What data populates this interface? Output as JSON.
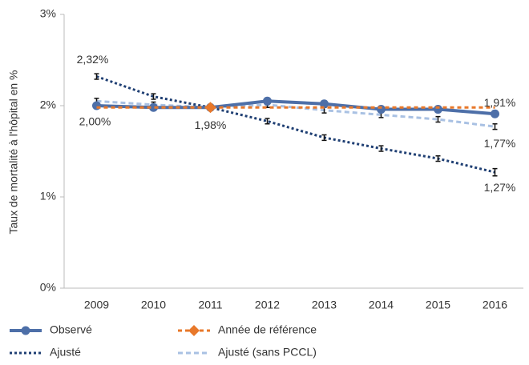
{
  "chart_data": {
    "type": "line",
    "y_label": "Taux de mortalité à l'hôpital en %",
    "categories": [
      "2009",
      "2010",
      "2011",
      "2012",
      "2013",
      "2014",
      "2015",
      "2016"
    ],
    "ylim": [
      0,
      3
    ],
    "yticks": [
      {
        "value": 0,
        "label": "0%"
      },
      {
        "value": 1,
        "label": "1%"
      },
      {
        "value": 2,
        "label": "2%"
      },
      {
        "value": 3,
        "label": "3%"
      }
    ],
    "grid": false,
    "series": [
      {
        "name": "Observé",
        "color": "#4d6fa8",
        "values": [
          2.0,
          1.98,
          1.98,
          2.05,
          2.02,
          1.96,
          1.96,
          1.91
        ],
        "value_labels": [
          "2,00%",
          null,
          null,
          null,
          null,
          null,
          null,
          "1,91%"
        ]
      },
      {
        "name": "Année de référence",
        "color": "#e8782a",
        "values": [
          1.98,
          1.98,
          1.98,
          1.98,
          1.98,
          1.98,
          1.98,
          1.98
        ],
        "value_labels": [
          null,
          null,
          "1,98%",
          null,
          null,
          null,
          null,
          null
        ]
      },
      {
        "name": "Ajusté",
        "color": "#1f3f73",
        "values": [
          2.32,
          2.1,
          1.98,
          1.83,
          1.65,
          1.53,
          1.42,
          1.27
        ],
        "errors": [
          0.03,
          0.03,
          null,
          0.03,
          0.03,
          0.03,
          0.03,
          0.04
        ],
        "value_labels": [
          "2,32%",
          null,
          null,
          null,
          null,
          null,
          null,
          "1,27%"
        ]
      },
      {
        "name": "Ajusté (sans PCCL)",
        "color": "#a9c1e3",
        "values": [
          2.05,
          2.01,
          1.98,
          2.01,
          1.95,
          1.9,
          1.85,
          1.77
        ],
        "errors": [
          0.03,
          0.03,
          null,
          0.03,
          0.03,
          0.03,
          0.03,
          0.03
        ],
        "value_labels": [
          null,
          null,
          null,
          null,
          null,
          null,
          null,
          "1,77%"
        ]
      }
    ]
  }
}
